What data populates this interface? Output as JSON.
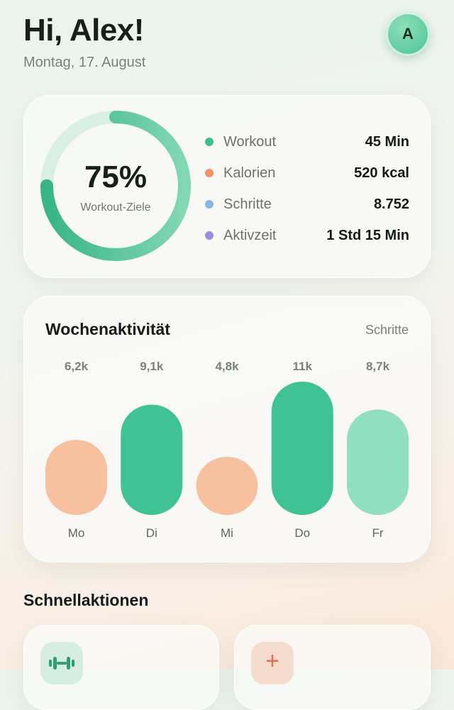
{
  "header": {
    "greeting": "Hi, Alex!",
    "date": "Montag, 17. August",
    "avatar_initial": "A"
  },
  "summary": {
    "progress_percent": 75,
    "progress_text": "75%",
    "progress_label": "Workout-Ziele",
    "metrics": [
      {
        "label": "Workout",
        "value": "45 Min",
        "color": "#3ebf8f"
      },
      {
        "label": "Kalorien",
        "value": "520 kcal",
        "color": "#f0936a"
      },
      {
        "label": "Schritte",
        "value": "8.752",
        "color": "#8ab7e0"
      },
      {
        "label": "Aktivzeit",
        "value": "1 Std 15 Min",
        "color": "#9a8ddf"
      }
    ]
  },
  "weekly": {
    "title": "Wochenaktivität",
    "unit": "Schritte",
    "days": [
      {
        "day": "Mo",
        "label": "6,2k",
        "value": 6.2,
        "color": "#f7c09e"
      },
      {
        "day": "Di",
        "label": "9,1k",
        "value": 9.1,
        "color": "#3fc295"
      },
      {
        "day": "Mi",
        "label": "4,8k",
        "value": 4.8,
        "color": "#f7c09e"
      },
      {
        "day": "Do",
        "label": "11k",
        "value": 11,
        "color": "#3fc295"
      },
      {
        "day": "Fr",
        "label": "8,7k",
        "value": 8.7,
        "color": "#8fdfc0"
      }
    ]
  },
  "quick_actions": {
    "title": "Schnellaktionen",
    "items": [
      {
        "icon": "dumbbell-icon"
      },
      {
        "icon": "plus-icon",
        "glyph": "+"
      }
    ]
  },
  "colors": {
    "accent": "#3fc295",
    "ring_track": "#d9efe6",
    "warm": "#f7c09e"
  }
}
